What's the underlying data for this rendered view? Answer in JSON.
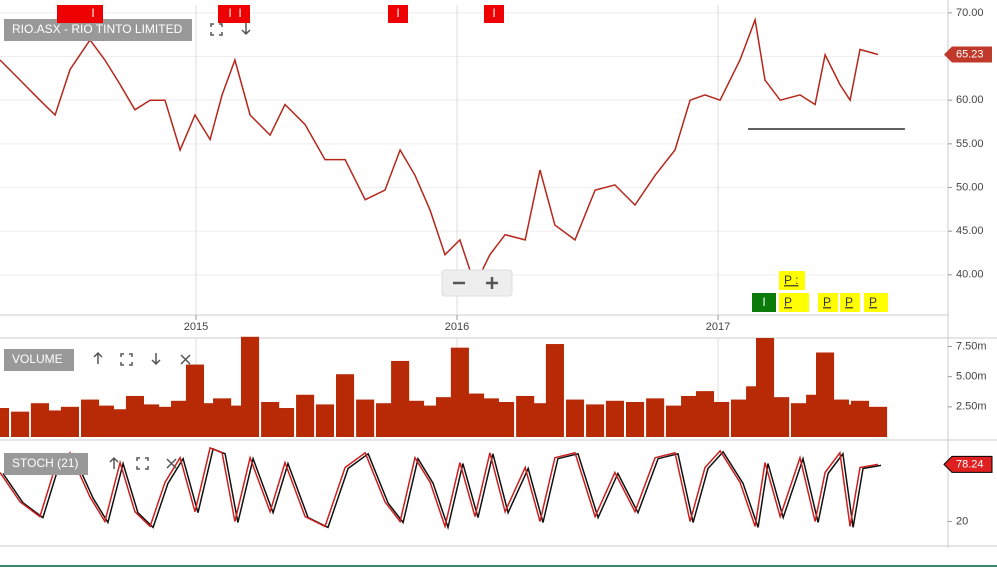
{
  "chart_data": [
    {
      "type": "line",
      "title": "RIO.ASX - RIO TINTO LIMITED",
      "color": "#b5271c",
      "x": [
        2014.249,
        2014.326,
        2014.402,
        2014.46,
        2014.517,
        2014.594,
        2014.651,
        2014.709,
        2014.766,
        2014.824,
        2014.881,
        2014.939,
        2014.996,
        2015.054,
        2015.1,
        2015.149,
        2015.207,
        2015.284,
        2015.341,
        2015.418,
        2015.494,
        2015.571,
        2015.648,
        2015.724,
        2015.782,
        2015.839,
        2015.897,
        2015.954,
        2016.011,
        2016.069,
        2016.126,
        2016.184,
        2016.261,
        2016.318,
        2016.375,
        2016.452,
        2016.529,
        2016.605,
        2016.682,
        2016.759,
        2016.835,
        2016.893,
        2016.95,
        2017.008,
        2017.084,
        2017.142,
        2017.18,
        2017.238,
        2017.314,
        2017.372,
        2017.41,
        2017.467,
        2017.506,
        2017.544,
        2017.613
      ],
      "values": [
        64.6,
        62.3,
        60.0,
        58.3,
        63.5,
        66.9,
        64.6,
        61.8,
        58.9,
        60.0,
        60.0,
        54.3,
        58.3,
        55.5,
        60.6,
        64.6,
        58.3,
        56.0,
        59.5,
        57.2,
        53.2,
        53.2,
        48.6,
        49.7,
        54.3,
        51.4,
        47.4,
        42.3,
        44.0,
        38.8,
        42.3,
        44.6,
        44.0,
        52.0,
        45.7,
        44.0,
        49.7,
        50.3,
        48.0,
        51.4,
        54.3,
        60.0,
        60.6,
        60.0,
        64.6,
        69.2,
        62.3,
        60.0,
        60.6,
        59.5,
        65.2,
        61.8,
        60.0,
        65.8,
        65.23
      ],
      "xlim": [
        2014.249,
        2017.881
      ],
      "xticks": [
        2015,
        2016,
        2017
      ],
      "ylim": [
        35.4,
        70.9
      ],
      "yticks": [
        {
          "value": 40,
          "label": "40.00"
        },
        {
          "value": 45,
          "label": "45.00"
        },
        {
          "value": 50,
          "label": "50.00"
        },
        {
          "value": 55,
          "label": "55.00"
        },
        {
          "value": 60,
          "label": "60.00"
        },
        {
          "value": 65,
          "label": "65.00"
        },
        {
          "value": 70,
          "label": "70.00"
        }
      ],
      "grid": true,
      "support_line": {
        "value": 56.7,
        "x": [
          2017.115,
          2017.716
        ]
      },
      "top_markers": [
        "I",
        "I",
        "I",
        "I",
        "I"
      ],
      "bottom_markers": [
        "I",
        "P :",
        "P",
        "P",
        "P",
        "P"
      ]
    },
    {
      "type": "bar",
      "title": "VOLUME",
      "color": "#b82a06",
      "x": [
        2014.249,
        2014.326,
        2014.402,
        2014.46,
        2014.517,
        2014.594,
        2014.651,
        2014.709,
        2014.766,
        2014.824,
        2014.881,
        2014.939,
        2014.996,
        2015.054,
        2015.1,
        2015.149,
        2015.207,
        2015.284,
        2015.341,
        2015.418,
        2015.494,
        2015.571,
        2015.648,
        2015.724,
        2015.782,
        2015.839,
        2015.897,
        2015.954,
        2016.011,
        2016.069,
        2016.126,
        2016.184,
        2016.261,
        2016.318,
        2016.375,
        2016.452,
        2016.529,
        2016.605,
        2016.682,
        2016.759,
        2016.835,
        2016.893,
        2016.95,
        2017.008,
        2017.084,
        2017.142,
        2017.18,
        2017.238,
        2017.314,
        2017.372,
        2017.41,
        2017.467,
        2017.506,
        2017.544,
        2017.613
      ],
      "values": [
        2.4,
        2.1,
        2.8,
        2.2,
        2.5,
        3.1,
        2.6,
        2.3,
        3.4,
        2.7,
        2.5,
        3.0,
        6.0,
        2.8,
        3.2,
        2.6,
        8.3,
        2.9,
        2.4,
        3.5,
        2.7,
        5.2,
        3.1,
        2.8,
        6.3,
        3.0,
        2.6,
        3.3,
        7.4,
        3.6,
        3.2,
        2.9,
        3.4,
        2.8,
        7.7,
        3.1,
        2.7,
        3.0,
        2.9,
        3.2,
        2.6,
        3.4,
        3.8,
        2.9,
        3.1,
        4.2,
        8.2,
        3.3,
        2.8,
        3.5,
        7.0,
        3.1,
        2.7,
        3.0,
        2.5
      ],
      "xlim": [
        2014.249,
        2017.881
      ],
      "ylim": [
        0,
        8.2
      ],
      "yticks": [
        {
          "value": 2.5,
          "label": "2.50m"
        },
        {
          "value": 5,
          "label": "5.00m"
        },
        {
          "value": 7.5,
          "label": "7.50m"
        }
      ]
    },
    {
      "type": "line",
      "title": "STOCH (21)",
      "color": "#cc1f1f",
      "x": [
        2014.249,
        2014.326,
        2014.402,
        2014.46,
        2014.517,
        2014.594,
        2014.651,
        2014.709,
        2014.766,
        2014.824,
        2014.881,
        2014.939,
        2014.996,
        2015.054,
        2015.1,
        2015.149,
        2015.207,
        2015.284,
        2015.341,
        2015.418,
        2015.494,
        2015.571,
        2015.648,
        2015.724,
        2015.782,
        2015.839,
        2015.897,
        2015.954,
        2016.011,
        2016.069,
        2016.126,
        2016.184,
        2016.261,
        2016.318,
        2016.375,
        2016.452,
        2016.529,
        2016.605,
        2016.682,
        2016.759,
        2016.835,
        2016.893,
        2016.95,
        2017.008,
        2017.084,
        2017.142,
        2017.18,
        2017.238,
        2017.314,
        2017.372,
        2017.41,
        2017.467,
        2017.506,
        2017.544,
        2017.613
      ],
      "values": [
        70,
        40,
        25,
        75,
        90,
        45,
        20,
        80,
        30,
        15,
        60,
        85,
        30,
        95,
        90,
        20,
        85,
        30,
        80,
        25,
        15,
        75,
        90,
        40,
        20,
        85,
        60,
        15,
        80,
        25,
        90,
        30,
        75,
        20,
        85,
        90,
        25,
        70,
        30,
        85,
        90,
        20,
        75,
        92,
        60,
        15,
        80,
        25,
        85,
        20,
        70,
        90,
        15,
        75,
        78.24
      ],
      "xlim": [
        2014.249,
        2017.881
      ],
      "ylim": [
        -4,
        98
      ],
      "yticks": [
        20
      ]
    }
  ]
}
